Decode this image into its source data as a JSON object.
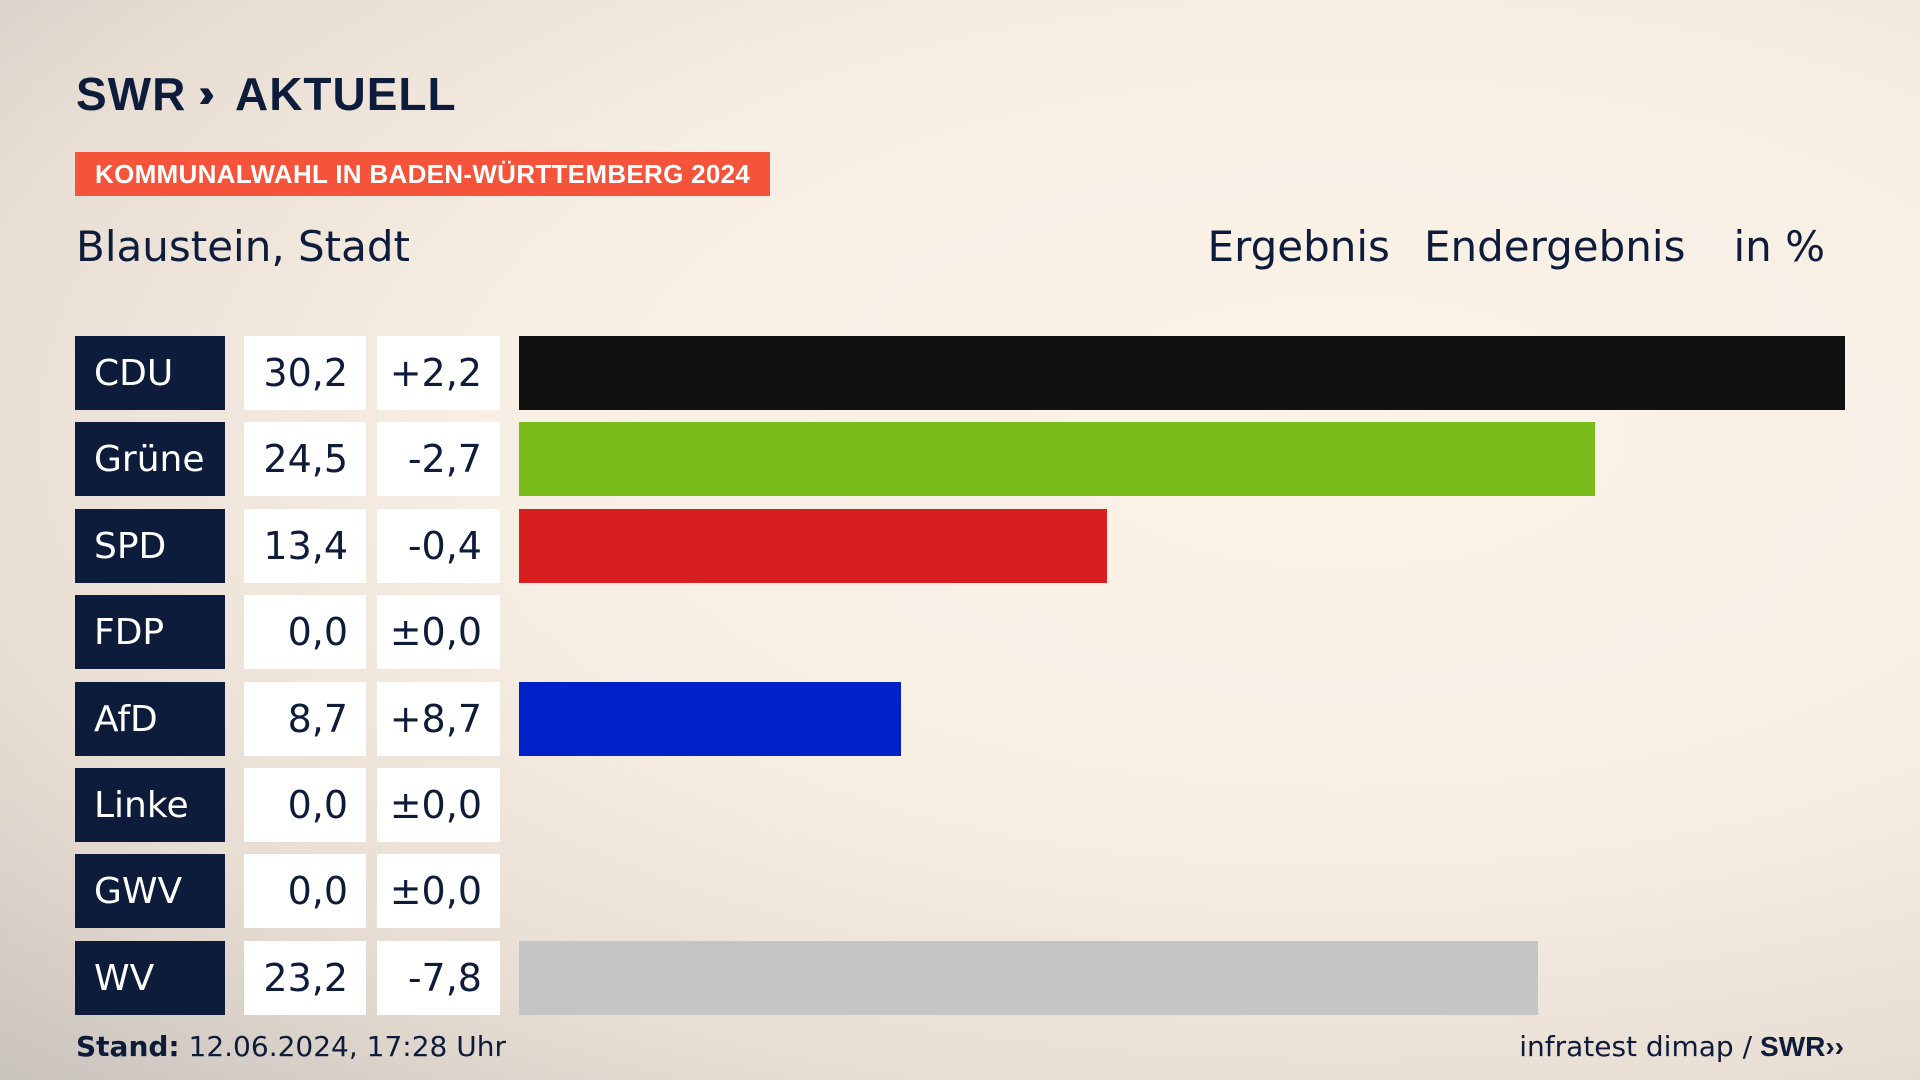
{
  "brand": {
    "name": "SWR",
    "chevrons": "››",
    "product": "AKTUELL"
  },
  "banner": "KOMMUNALWAHL IN BADEN-WÜRTTEMBERG 2024",
  "place": "Blaustein, Stadt",
  "header": {
    "result": "Ergebnis",
    "status": "Endergebnis",
    "unit": "in %"
  },
  "footer": {
    "stand_label": "Stand:",
    "stand_value": "12.06.2024, 17:28 Uhr",
    "source": "infratest dimap /",
    "source_logo": "SWR››"
  },
  "chart_data": {
    "type": "bar",
    "orientation": "horizontal",
    "categories": [
      "CDU",
      "Grüne",
      "SPD",
      "FDP",
      "AfD",
      "Linke",
      "GWV",
      "WV"
    ],
    "values": [
      30.2,
      24.5,
      13.4,
      0.0,
      8.7,
      0.0,
      0.0,
      23.2
    ],
    "value_labels": [
      "30,2",
      "24,5",
      "13,4",
      "0,0",
      "8,7",
      "0,0",
      "0,0",
      "23,2"
    ],
    "diff_labels": [
      "+2,2",
      "-2,7",
      "-0,4",
      "±0,0",
      "+8,7",
      "±0,0",
      "±0,0",
      "-7,8"
    ],
    "colors": [
      "#111111",
      "#79bd1d",
      "#d81f1f",
      "#ffe100",
      "#0020c8",
      "#be3075",
      "#888888",
      "#c5c5c5"
    ],
    "xlim": [
      0,
      30.2
    ]
  }
}
